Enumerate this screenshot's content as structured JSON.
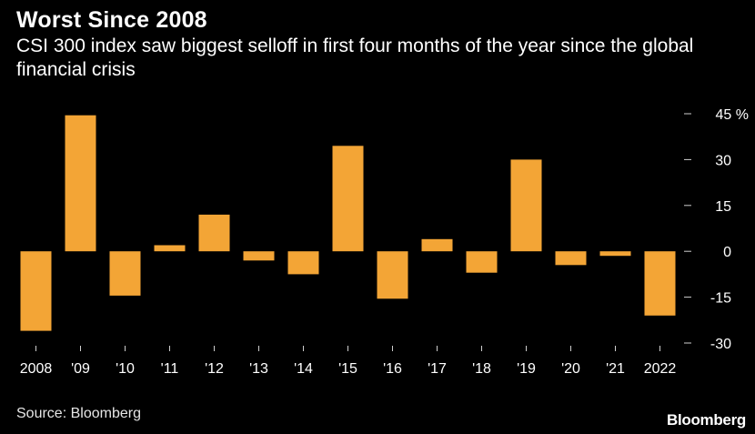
{
  "header": {
    "title": "Worst Since 2008",
    "subtitle": "CSI 300 index saw biggest selloff in first four months of the year since the global financial crisis"
  },
  "footer": {
    "source": "Source: Bloomberg",
    "brand": "Bloomberg"
  },
  "colors": {
    "background": "#000000",
    "bar": "#f3a536",
    "text": "#ffffff",
    "tick": "#cfcfcf"
  },
  "chart_data": {
    "type": "bar",
    "title": "Worst Since 2008",
    "subtitle": "CSI 300 index saw biggest selloff in first four months of the year since the global financial crisis",
    "categories": [
      "2008",
      "'09",
      "'10",
      "'11",
      "'12",
      "'13",
      "'14",
      "'15",
      "'16",
      "'17",
      "'18",
      "'19",
      "'20",
      "'21",
      "2022"
    ],
    "values": [
      -26,
      44.5,
      -14.5,
      2,
      12,
      -3,
      -7.5,
      34.5,
      -15.5,
      4,
      -7,
      30,
      -4.5,
      -1.5,
      -21
    ],
    "ylim": [
      -30,
      45
    ],
    "yticks": [
      45,
      30,
      15,
      0,
      -15,
      -30
    ],
    "yticks_labels": [
      "45 %",
      "30",
      "15",
      "0",
      "-15",
      "-30"
    ],
    "y_axis_position": "right",
    "grid": false,
    "legend": "none"
  }
}
